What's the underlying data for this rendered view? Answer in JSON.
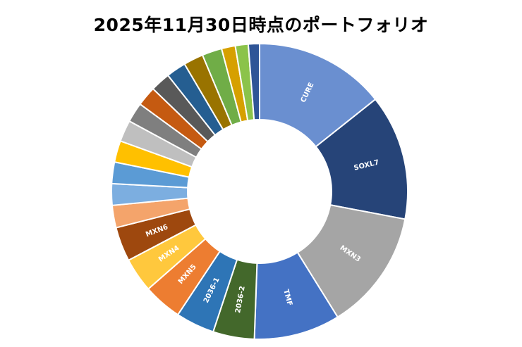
{
  "chart_data": {
    "type": "pie",
    "variant": "donut",
    "title": "2025年11月30日時点のポートフォリオ",
    "slices": [
      {
        "label": "CURE",
        "value": 15.2,
        "color": "#6a8fd0"
      },
      {
        "label": "SOXL7",
        "value": 14.6,
        "color": "#264478"
      },
      {
        "label": "MXN3",
        "value": 14.0,
        "color": "#a5a5a5"
      },
      {
        "label": "TMF",
        "value": 10.0,
        "color": "#4472c4"
      },
      {
        "label": "2036-2",
        "value": 4.8,
        "color": "#43682b"
      },
      {
        "label": "2036-1",
        "value": 4.5,
        "color": "#2e75b6"
      },
      {
        "label": "MXN5",
        "value": 4.5,
        "color": "#ed7d31"
      },
      {
        "label": "MXN4",
        "value": 4.0,
        "color": "#ffc83d"
      },
      {
        "label": "MXN6",
        "value": 4.0,
        "color": "#9e480e"
      },
      {
        "label": "",
        "value": 2.6,
        "color": "#f4a46b"
      },
      {
        "label": "",
        "value": 2.5,
        "color": "#7caee0"
      },
      {
        "label": "",
        "value": 2.5,
        "color": "#5b9bd5"
      },
      {
        "label": "",
        "value": 2.5,
        "color": "#ffc000"
      },
      {
        "label": "",
        "value": 2.5,
        "color": "#bfbfbf"
      },
      {
        "label": "",
        "value": 2.3,
        "color": "#7f7f7f"
      },
      {
        "label": "",
        "value": 2.3,
        "color": "#c55a11"
      },
      {
        "label": "",
        "value": 2.3,
        "color": "#595959"
      },
      {
        "label": "",
        "value": 2.3,
        "color": "#255e91"
      },
      {
        "label": "",
        "value": 2.3,
        "color": "#997300"
      },
      {
        "label": "",
        "value": 2.3,
        "color": "#70ad47"
      },
      {
        "label": "",
        "value": 1.6,
        "color": "#d6a000"
      },
      {
        "label": "",
        "value": 1.5,
        "color": "#8bc34a"
      },
      {
        "label": "",
        "value": 1.3,
        "color": "#2f5597"
      }
    ],
    "legend": "none"
  }
}
